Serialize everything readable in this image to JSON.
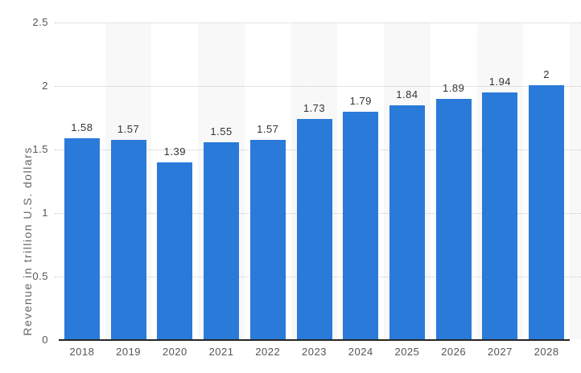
{
  "chart_data": {
    "type": "bar",
    "title": "",
    "xlabel": "",
    "ylabel": "Revenue in trillion U.S. dollars",
    "categories": [
      "2018",
      "2019",
      "2020",
      "2021",
      "2022",
      "2023",
      "2024",
      "2025",
      "2026",
      "2027",
      "2028"
    ],
    "values": [
      1.58,
      1.57,
      1.39,
      1.55,
      1.57,
      1.73,
      1.79,
      1.84,
      1.89,
      1.94,
      2
    ],
    "value_labels": [
      "1.58",
      "1.57",
      "1.39",
      "1.55",
      "1.57",
      "1.73",
      "1.79",
      "1.84",
      "1.89",
      "1.94",
      "2"
    ],
    "ylim": [
      0,
      2.5
    ],
    "yticks": [
      0,
      0.5,
      1,
      1.5,
      2,
      2.5
    ],
    "ytick_labels": [
      "0",
      "0.5",
      "1",
      "1.5",
      "2",
      "2.5"
    ],
    "grid": "horizontal dotted gridlines",
    "legend": "none",
    "plot_bands_on": [
      "2019",
      "2021",
      "2023",
      "2025",
      "2027"
    ],
    "colors": {
      "bar": "#2a7ad9",
      "plot_band": "#f8f8f8",
      "gridline": "#c9c9c9",
      "axis_line": "#262626",
      "value_label": "#333333",
      "tick_label": "#555555",
      "axis_title": "#666666",
      "background": "#ffffff"
    }
  }
}
